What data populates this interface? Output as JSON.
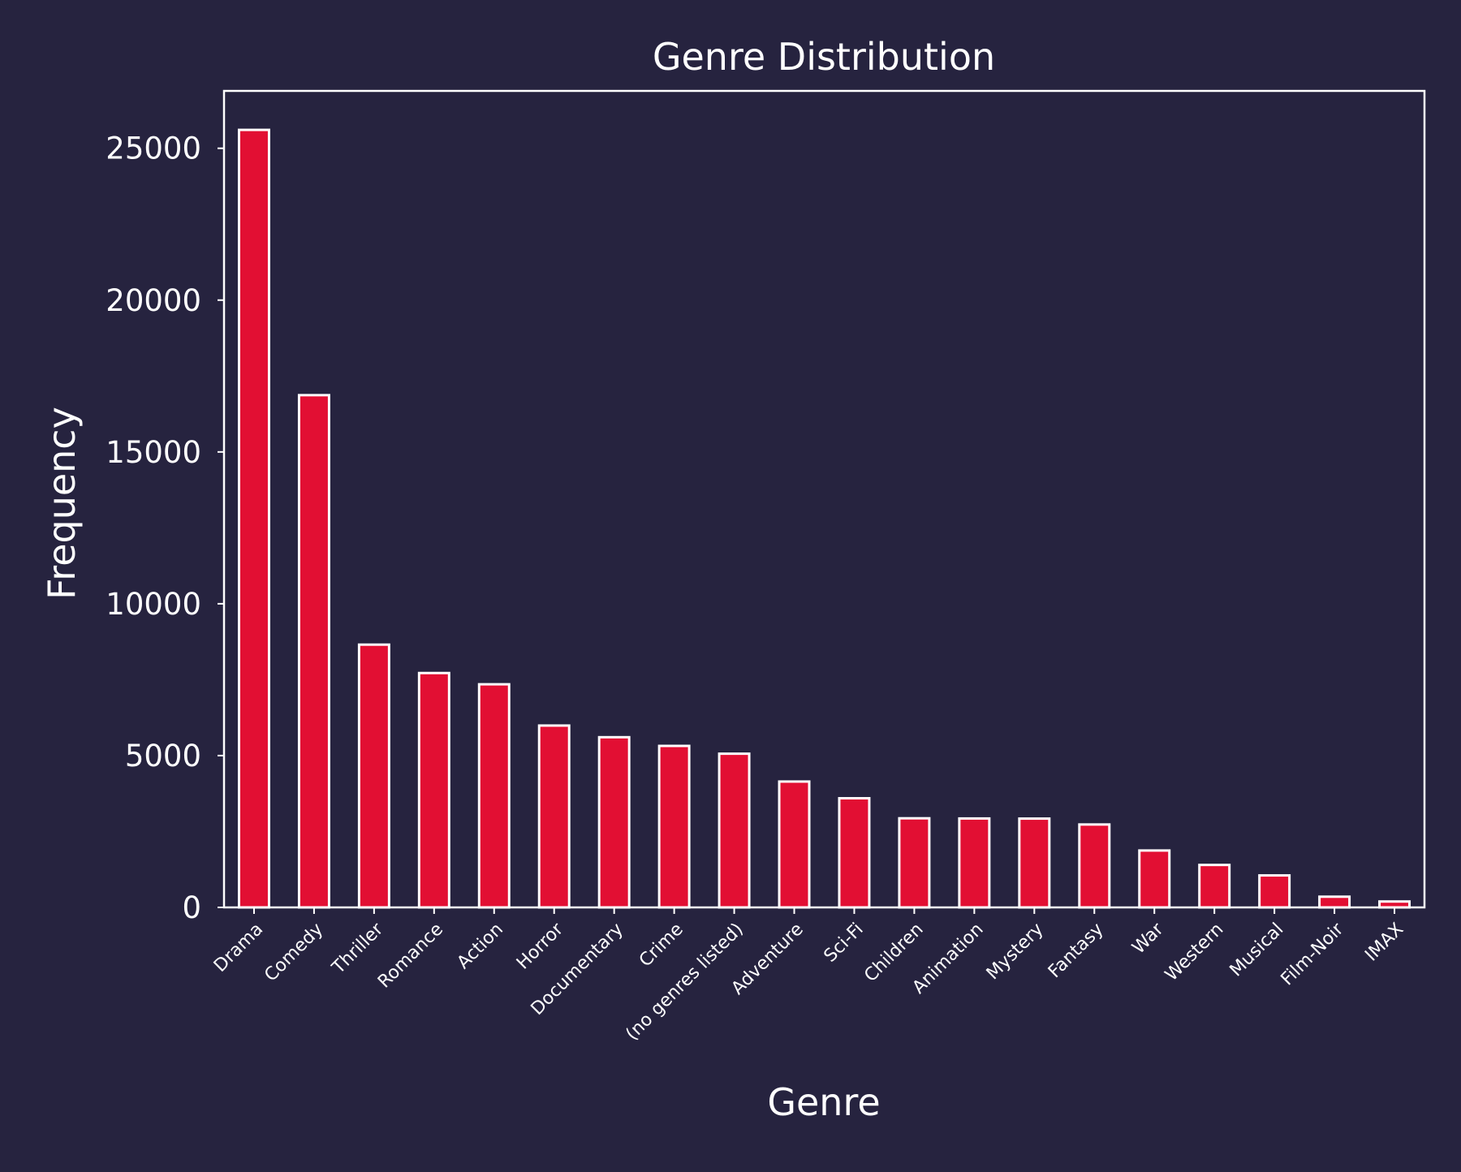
{
  "chart_data": {
    "type": "bar",
    "title": "Genre Distribution",
    "xlabel": "Genre",
    "ylabel": "Frequency",
    "categories": [
      "Drama",
      "Comedy",
      "Thriller",
      "Romance",
      "Action",
      "Horror",
      "Documentary",
      "Crime",
      "(no genres listed)",
      "Adventure",
      "Sci-Fi",
      "Children",
      "Animation",
      "Mystery",
      "Fantasy",
      "War",
      "Western",
      "Musical",
      "Film-Noir",
      "IMAX"
    ],
    "values": [
      25606,
      16870,
      8654,
      7719,
      7348,
      5989,
      5605,
      5319,
      5062,
      4145,
      3595,
      2935,
      2929,
      2925,
      2731,
      1874,
      1399,
      1054,
      353,
      195
    ],
    "ylim": [
      0,
      26890
    ],
    "yticks": [
      0,
      5000,
      10000,
      15000,
      20000,
      25000
    ],
    "grid": false,
    "legend": "none",
    "colors": {
      "background": "#26233f",
      "bar_fill": "#e20f33",
      "bar_edge": "#ffffff",
      "text": "#ffffff",
      "axes": "#ffffff"
    }
  }
}
